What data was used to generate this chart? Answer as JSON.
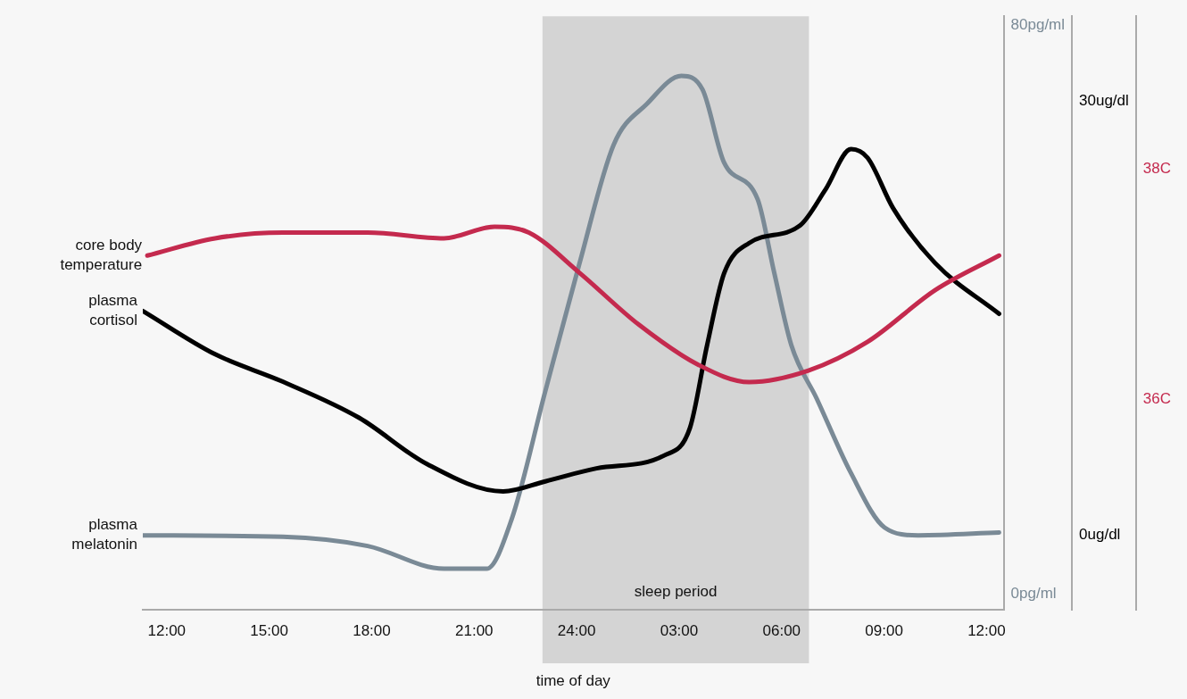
{
  "chart_data": {
    "type": "line",
    "xlabel": "time of day",
    "xlim": [
      "2000-01-01T11:18",
      "2000-01-02T12:30"
    ],
    "xticks": [
      {
        "value": "2000-01-01T12:00",
        "label": "12:00"
      },
      {
        "value": "2000-01-01T15:00",
        "label": "15:00"
      },
      {
        "value": "2000-01-01T18:00",
        "label": "18:00"
      },
      {
        "value": "2000-01-01T21:00",
        "label": "21:00"
      },
      {
        "value": "2000-01-02T00:00",
        "label": "24:00"
      },
      {
        "value": "2000-01-02T03:00",
        "label": "03:00"
      },
      {
        "value": "2000-01-02T06:00",
        "label": "06:00"
      },
      {
        "value": "2000-01-02T09:00",
        "label": "09:00"
      },
      {
        "value": "2000-01-02T12:00",
        "label": "12:00"
      }
    ],
    "ylim": [
      -5.2,
      35.9
    ],
    "yticks": [
      {
        "value": 0,
        "label": "0ug/dl"
      },
      {
        "value": 30,
        "label": "30ug/dl"
      }
    ],
    "y2lim": [
      34.17,
      39.33
    ],
    "y2ticks": [
      {
        "value": 36,
        "label": "36C"
      },
      {
        "value": 38,
        "label": "38C"
      }
    ],
    "y3lim": [
      -2.3,
      81.3
    ],
    "y3ticks": [
      {
        "value": 0,
        "label": "0pg/ml"
      },
      {
        "value": 80,
        "label": "80pg/ml"
      }
    ],
    "grid": false,
    "legend": false,
    "marker": "none",
    "line_style": "solid",
    "bands": [
      {
        "axis": "x",
        "from": "2000-01-01T23:00",
        "to": "2000-01-02T06:48",
        "label": "sleep period",
        "color": "#d4d4d4"
      }
    ],
    "series": [
      {
        "name": "core body temperature",
        "color": "#c42a4e",
        "axis": "y2",
        "x": [
          "2000-01-01T11:26",
          "2000-01-01T13:25",
          "2000-01-01T15:24",
          "2000-01-01T17:53",
          "2000-01-01T20:07",
          "2000-01-01T21:36",
          "2000-01-01T22:36",
          "2000-01-02T00:05",
          "2000-01-02T01:49",
          "2000-01-02T03:34",
          "2000-01-02T05:03",
          "2000-01-02T06:47",
          "2000-01-02T08:31",
          "2000-01-02T10:30",
          "2000-01-02T12:22"
        ],
        "values": [
          37.25,
          37.4,
          37.45,
          37.45,
          37.4,
          37.5,
          37.45,
          37.1,
          36.65,
          36.3,
          36.15,
          36.25,
          36.5,
          36.95,
          37.25
        ]
      },
      {
        "name": "plasma cortisol",
        "color": "#000000",
        "axis": "y",
        "x": [
          "2000-01-01T11:18",
          "2000-01-01T13:25",
          "2000-01-01T15:24",
          "2000-01-01T17:38",
          "2000-01-01T19:37",
          "2000-01-01T21:51",
          "2000-01-01T23:05",
          "2000-01-02T00:35",
          "2000-01-02T02:34",
          "2000-01-02T03:19",
          "2000-01-02T03:49",
          "2000-01-02T04:19",
          "2000-01-02T05:03",
          "2000-01-02T06:32",
          "2000-01-02T07:17",
          "2000-01-02T08:02",
          "2000-01-02T08:31",
          "2000-01-02T09:16",
          "2000-01-02T10:30",
          "2000-01-02T12:22"
        ],
        "values": [
          15.5,
          12.5,
          10.6,
          8.1,
          4.9,
          3.0,
          3.7,
          4.6,
          5.5,
          7.4,
          13.1,
          18.1,
          20.2,
          21.4,
          23.9,
          26.7,
          26.1,
          22.6,
          18.8,
          15.3
        ]
      },
      {
        "name": "plasma melatonin",
        "color": "#7a8a96",
        "axis": "y3",
        "x": [
          "2000-01-01T11:18",
          "2000-01-01T15:24",
          "2000-01-01T17:53",
          "2000-01-01T20:07",
          "2000-01-01T21:22",
          "2000-01-01T22:06",
          "2000-01-01T23:05",
          "2000-01-02T00:05",
          "2000-01-02T01:05",
          "2000-01-02T02:04",
          "2000-01-02T03:04",
          "2000-01-02T03:41",
          "2000-01-02T04:19",
          "2000-01-02T05:18",
          "2000-01-02T05:47",
          "2000-01-02T06:17",
          "2000-01-02T07:02",
          "2000-01-02T08:01",
          "2000-01-02T09:01",
          "2000-01-02T10:00",
          "2000-01-02T12:22"
        ],
        "values": [
          8.2,
          8.0,
          6.7,
          3.5,
          3.5,
          10.5,
          28.5,
          46.5,
          63.2,
          69.0,
          72.9,
          71.0,
          60.7,
          55.5,
          45.2,
          35.0,
          27.4,
          17.1,
          9.3,
          8.2,
          8.6
        ]
      }
    ]
  }
}
